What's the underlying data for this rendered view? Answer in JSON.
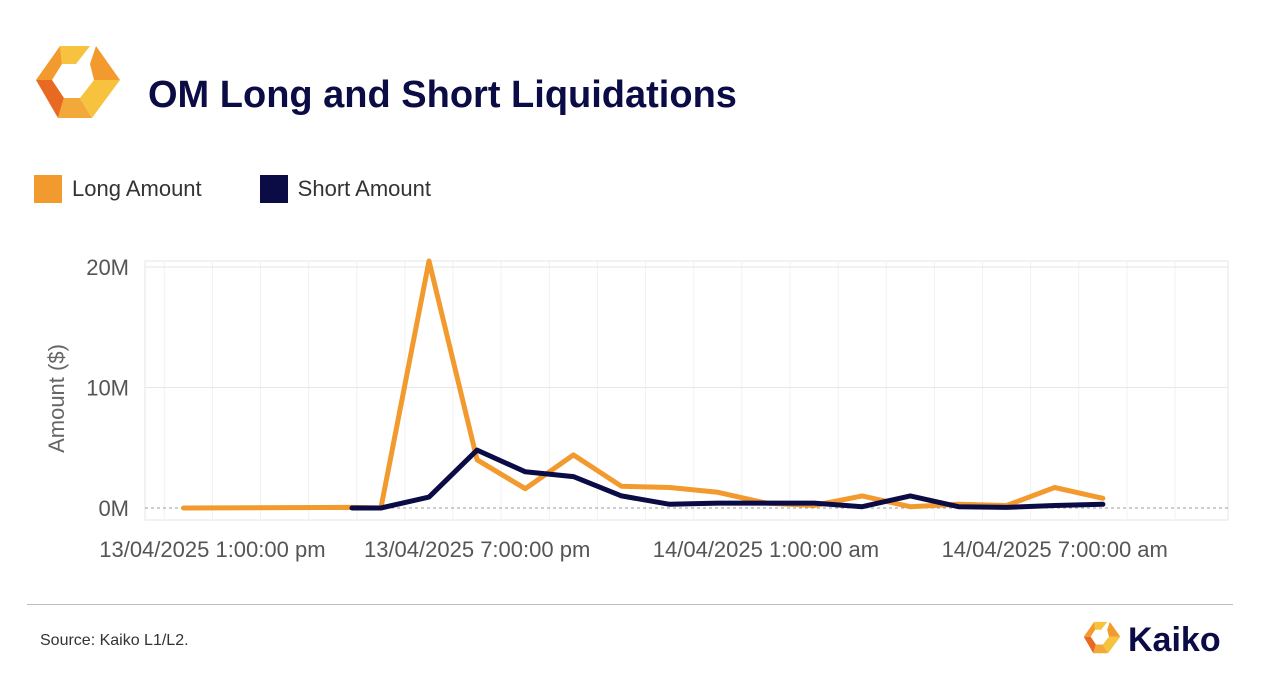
{
  "header": {
    "title": "OM Long and Short Liquidations"
  },
  "footer": {
    "source": "Source: Kaiko L1/L2.",
    "brand": "Kaiko"
  },
  "colors": {
    "long": "#f39a2e",
    "short": "#0b0b45",
    "title": "#0b0b45"
  },
  "chart_data": {
    "type": "line",
    "ylabel": "Amount ($)",
    "ylim": [
      -1,
      20.5
    ],
    "yticks": [
      {
        "value": 20,
        "label": "20M"
      },
      {
        "value": 10,
        "label": "10M"
      },
      {
        "value": 0,
        "label": "0M"
      }
    ],
    "xlim": [
      -0.9,
      21.6
    ],
    "xticks": [
      {
        "index": 0.5,
        "label": "13/04/2025 1:00:00 pm"
      },
      {
        "index": 6.0,
        "label": "13/04/2025 7:00:00 pm"
      },
      {
        "index": 12.0,
        "label": "14/04/2025 1:00:00 am"
      },
      {
        "index": 18.0,
        "label": "14/04/2025 7:00:00 am"
      }
    ],
    "series": [
      {
        "name": "Long Amount",
        "color": "#f39a2e",
        "points": [
          [
            -0.1,
            0
          ],
          [
            3.4,
            0.05
          ],
          [
            4,
            0
          ],
          [
            5,
            20.5
          ],
          [
            6,
            4
          ],
          [
            7,
            1.6
          ],
          [
            8,
            4.4
          ],
          [
            9,
            1.8
          ],
          [
            10,
            1.7
          ],
          [
            11,
            1.3
          ],
          [
            12,
            0.4
          ],
          [
            13,
            0.2
          ],
          [
            14,
            1
          ],
          [
            15,
            0.1
          ],
          [
            16,
            0.3
          ],
          [
            17,
            0.2
          ],
          [
            18,
            1.7
          ],
          [
            19,
            0.8
          ]
        ]
      },
      {
        "name": "Short Amount",
        "color": "#0b0b45",
        "points": [
          [
            3.4,
            0
          ],
          [
            4,
            0
          ],
          [
            5,
            0.9
          ],
          [
            6,
            4.8
          ],
          [
            7,
            3
          ],
          [
            8,
            2.6
          ],
          [
            9,
            1
          ],
          [
            10,
            0.3
          ],
          [
            11,
            0.4
          ],
          [
            12,
            0.4
          ],
          [
            13,
            0.4
          ],
          [
            14,
            0.1
          ],
          [
            15,
            1
          ],
          [
            16,
            0.1
          ],
          [
            17,
            0.05
          ],
          [
            18,
            0.2
          ],
          [
            19,
            0.3
          ]
        ]
      }
    ]
  }
}
